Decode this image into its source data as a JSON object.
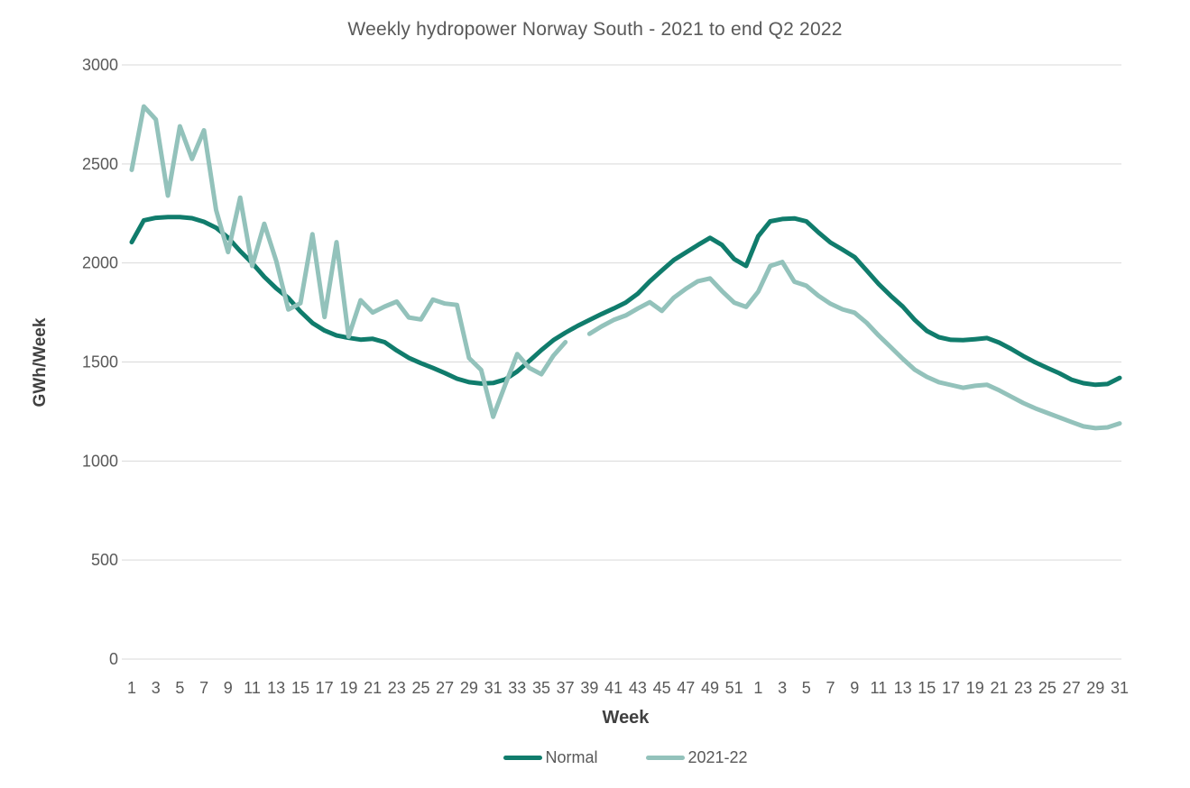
{
  "chart_data": {
    "type": "line",
    "title": "Weekly hydropower Norway South - 2021 to end Q2 2022",
    "xlabel": "Week",
    "ylabel": "GWh/Week",
    "ylim": [
      0,
      3000
    ],
    "y_ticks": [
      0,
      500,
      1000,
      1500,
      2000,
      2500,
      3000
    ],
    "grid": "horizontal",
    "grid_color": "#D9D9D9",
    "text_color": "#595959",
    "legend_position": "bottom",
    "x_axis_note": "weeks 1-52 of 2021 followed by weeks 1-31 of 2022",
    "x_tick_positions": [
      1,
      3,
      5,
      7,
      9,
      11,
      13,
      15,
      17,
      19,
      21,
      23,
      25,
      27,
      29,
      31,
      33,
      35,
      37,
      39,
      41,
      43,
      45,
      47,
      49,
      51,
      53,
      55,
      57,
      59,
      61,
      63,
      65,
      67,
      69,
      71,
      73,
      75,
      77,
      79,
      81,
      83
    ],
    "x_tick_labels": [
      "1",
      "3",
      "5",
      "7",
      "9",
      "11",
      "13",
      "15",
      "17",
      "19",
      "21",
      "23",
      "25",
      "27",
      "29",
      "31",
      "33",
      "35",
      "37",
      "39",
      "41",
      "43",
      "45",
      "47",
      "49",
      "51",
      "1",
      "3",
      "5",
      "7",
      "9",
      "11",
      "13",
      "15",
      "17",
      "19",
      "21",
      "23",
      "25",
      "27",
      "29",
      "31"
    ],
    "series": [
      {
        "name": "Normal",
        "color": "#107C6C",
        "values": [
          2105,
          2215,
          2228,
          2232,
          2232,
          2226,
          2208,
          2178,
          2128,
          2060,
          2000,
          1930,
          1872,
          1823,
          1755,
          1697,
          1659,
          1634,
          1622,
          1613,
          1617,
          1600,
          1558,
          1521,
          1494,
          1470,
          1444,
          1416,
          1398,
          1391,
          1394,
          1412,
          1452,
          1505,
          1560,
          1610,
          1648,
          1682,
          1712,
          1742,
          1770,
          1800,
          1845,
          1907,
          1962,
          2015,
          2053,
          2091,
          2127,
          2091,
          2020,
          1985,
          2135,
          2210,
          2222,
          2225,
          2210,
          2154,
          2103,
          2067,
          2030,
          1962,
          1894,
          1834,
          1780,
          1712,
          1657,
          1625,
          1612,
          1610,
          1615,
          1621,
          1598,
          1566,
          1530,
          1498,
          1470,
          1443,
          1411,
          1393,
          1385,
          1389,
          1420
        ]
      },
      {
        "name": "2021-22",
        "color": "#93C2BB",
        "values": [
          2470,
          2790,
          2725,
          2340,
          2690,
          2525,
          2670,
          2268,
          2055,
          2330,
          1985,
          2198,
          2010,
          1765,
          1797,
          2145,
          1727,
          2105,
          1628,
          1812,
          1750,
          1780,
          1805,
          1725,
          1715,
          1815,
          1795,
          1788,
          1520,
          1460,
          1223,
          1385,
          1540,
          1470,
          1438,
          1532,
          1600,
          null,
          1642,
          1680,
          1712,
          1735,
          1770,
          1802,
          1758,
          1825,
          1870,
          1908,
          1922,
          1858,
          1800,
          1778,
          1855,
          1985,
          2005,
          1905,
          1885,
          1834,
          1794,
          1766,
          1749,
          1698,
          1634,
          1575,
          1516,
          1461,
          1425,
          1398,
          1384,
          1370,
          1380,
          1385,
          1357,
          1325,
          1293,
          1266,
          1243,
          1220,
          1197,
          1175,
          1166,
          1170,
          1190
        ]
      }
    ]
  }
}
